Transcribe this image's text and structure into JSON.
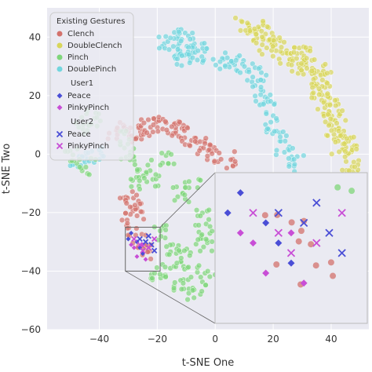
{
  "chart_data": {
    "type": "scatter",
    "title": "",
    "xlabel": "t-SNE One",
    "ylabel": "t-SNE Two",
    "xlim": [
      -58,
      53
    ],
    "ylim": [
      -60,
      50
    ],
    "xticks": [
      -40,
      -20,
      0,
      20,
      40
    ],
    "yticks": [
      40,
      20,
      0,
      -20,
      -40,
      -60
    ],
    "grid": true,
    "legend_position": "top-left",
    "legend": {
      "title": "Existing Gestures",
      "entries": [
        {
          "label": "Clench",
          "color": "#d3726c",
          "marker": "circle"
        },
        {
          "label": "DoubleClench",
          "color": "#d8d65a",
          "marker": "circle"
        },
        {
          "label": "Pinch",
          "color": "#7fd67a",
          "marker": "circle"
        },
        {
          "label": "DoublePinch",
          "color": "#72d6de",
          "marker": "circle"
        }
      ],
      "groups": [
        {
          "title": "User1",
          "entries": [
            {
              "label": "Peace",
              "color": "#4a4ed6",
              "marker": "diamond"
            },
            {
              "label": "PinkyPinch",
              "color": "#c84ed6",
              "marker": "diamond"
            }
          ]
        },
        {
          "title": "User2",
          "entries": [
            {
              "label": "Peace",
              "color": "#4a4ed6",
              "marker": "x"
            },
            {
              "label": "PinkyPinch",
              "color": "#c84ed6",
              "marker": "x"
            }
          ]
        }
      ]
    },
    "clusters": [
      {
        "series": "DoubleClench",
        "points": [
          [
            10,
            44
          ],
          [
            14,
            43
          ],
          [
            17,
            41
          ],
          [
            20,
            39
          ],
          [
            22,
            36
          ],
          [
            25,
            34
          ],
          [
            29,
            32
          ],
          [
            33,
            31
          ],
          [
            35,
            28
          ],
          [
            37,
            25
          ],
          [
            38,
            20
          ],
          [
            40,
            16
          ],
          [
            42,
            12
          ],
          [
            44,
            8
          ],
          [
            45,
            4
          ],
          [
            46,
            0
          ],
          [
            47,
            -4
          ],
          [
            45,
            -8
          ],
          [
            30,
            35
          ],
          [
            28,
            30
          ],
          [
            32,
            26
          ],
          [
            36,
            22
          ],
          [
            38,
            14
          ],
          [
            41,
            9
          ],
          [
            43,
            2
          ],
          [
            12,
            40
          ],
          [
            18,
            37
          ]
        ]
      },
      {
        "series": "DoublePinch",
        "points": [
          [
            -13,
            41
          ],
          [
            -12,
            36
          ],
          [
            -17,
            38
          ],
          [
            -10,
            39
          ],
          [
            -5,
            35
          ],
          [
            2,
            32
          ],
          [
            6,
            31
          ],
          [
            10,
            30
          ],
          [
            13,
            28
          ],
          [
            15,
            24
          ],
          [
            16,
            20
          ],
          [
            18,
            16
          ],
          [
            20,
            10
          ],
          [
            22,
            5
          ],
          [
            24,
            1
          ],
          [
            28,
            -3
          ],
          [
            -11,
            33
          ],
          [
            -9,
            36
          ],
          [
            -7,
            34
          ],
          [
            -47,
            -3
          ],
          [
            -44,
            -1
          ],
          [
            -41,
            0
          ]
        ]
      },
      {
        "series": "Clench",
        "points": [
          [
            -34,
            8
          ],
          [
            -31,
            7
          ],
          [
            -28,
            8
          ],
          [
            -25,
            9
          ],
          [
            -22,
            10
          ],
          [
            -19,
            10
          ],
          [
            -15,
            9
          ],
          [
            -12,
            8
          ],
          [
            -9,
            6
          ],
          [
            -6,
            3
          ],
          [
            -3,
            1
          ],
          [
            0,
            0
          ],
          [
            4,
            -2
          ],
          [
            -30,
            -15
          ],
          [
            -27,
            -20
          ],
          [
            -30,
            -25
          ],
          [
            -26,
            -30
          ],
          [
            -24,
            -34
          ],
          [
            -28,
            -18
          ]
        ]
      },
      {
        "series": "Pinch",
        "points": [
          [
            -46,
            10
          ],
          [
            -42,
            12
          ],
          [
            -50,
            -1
          ],
          [
            -44,
            -4
          ],
          [
            -25,
            -5
          ],
          [
            -22,
            -8
          ],
          [
            -16,
            -2
          ],
          [
            -12,
            -14
          ],
          [
            -8,
            -11
          ],
          [
            -5,
            -22
          ],
          [
            -3,
            -26
          ],
          [
            -14,
            -32
          ],
          [
            -10,
            -35
          ],
          [
            -16,
            -40
          ],
          [
            -13,
            -44
          ],
          [
            -20,
            -41
          ],
          [
            -8,
            -40
          ],
          [
            -4,
            -32
          ],
          [
            -2,
            -42
          ],
          [
            -30,
            0
          ],
          [
            -32,
            5
          ],
          [
            -27,
            -10
          ],
          [
            -19,
            -27
          ],
          [
            -7,
            -48
          ]
        ]
      }
    ],
    "samples": [
      {
        "series": "User1 Peace",
        "points": [
          [
            -30,
            -29
          ],
          [
            -29,
            -27
          ],
          [
            -27,
            -30
          ],
          [
            -26,
            -32
          ],
          [
            -25,
            -34
          ]
        ]
      },
      {
        "series": "User1 PinkyPinch",
        "points": [
          [
            -29,
            -31
          ],
          [
            -28,
            -32
          ],
          [
            -27,
            -35
          ],
          [
            -25,
            -31
          ],
          [
            -24,
            -36
          ]
        ]
      },
      {
        "series": "User2 Peace",
        "points": [
          [
            -26,
            -29
          ],
          [
            -24,
            -30
          ],
          [
            -23,
            -28
          ],
          [
            -22,
            -31
          ],
          [
            -21,
            -33
          ]
        ]
      },
      {
        "series": "User2 PinkyPinch",
        "points": [
          [
            -28,
            -29
          ],
          [
            -26,
            -31
          ],
          [
            -25,
            -33
          ],
          [
            -23,
            -32
          ],
          [
            -21,
            -29
          ]
        ]
      }
    ],
    "inset": {
      "source_xlim": [
        -31,
        -19
      ],
      "source_ylim": [
        -40,
        -25
      ]
    }
  }
}
